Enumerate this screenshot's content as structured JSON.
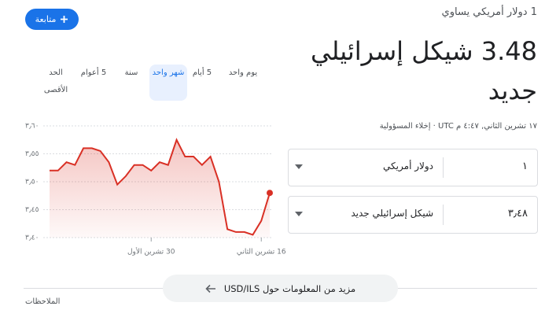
{
  "header": {
    "follow": "متابعة",
    "equals": "1 دولار أمريكي يساوي",
    "result": "3.48 شيكل إسرائيلي جديد",
    "timestamp": "١٧ تشرين الثاني, ٤:٤٧ م UTC",
    "disclaimer": "إخلاء المسؤولية"
  },
  "tabs": [
    "يوم واحد",
    "5 أيام",
    "شهر واحد",
    "سنة",
    "5 أعوام",
    "الحد الأقصى"
  ],
  "selected_tab": 2,
  "converter": {
    "from_amount": "١",
    "from_currency": "دولار أمريكي",
    "to_amount": "٣٫٤٨",
    "to_currency": "شيكل إسرائيلي جديد"
  },
  "chart_data": {
    "type": "line",
    "categories": [
      null,
      null,
      null,
      null,
      null,
      null,
      null,
      null,
      null,
      null,
      null,
      null,
      "30 تشرين الأول",
      null,
      null,
      null,
      null,
      null,
      null,
      null,
      null,
      null,
      null,
      null,
      null,
      "16 تشرين الثاني",
      null
    ],
    "values": [
      3.52,
      3.52,
      3.535,
      3.53,
      3.56,
      3.56,
      3.555,
      3.535,
      3.495,
      3.51,
      3.53,
      3.53,
      3.52,
      3.535,
      3.53,
      3.575,
      3.545,
      3.545,
      3.53,
      3.545,
      3.5,
      3.415,
      3.41,
      3.41,
      3.405,
      3.43,
      3.48
    ],
    "color": "#d93025",
    "ylim": [
      3.4,
      3.6
    ],
    "yticks": [
      {
        "value": 3.4,
        "label": "٣٫٤٠"
      },
      {
        "value": 3.45,
        "label": "٣٫٤٥"
      },
      {
        "value": 3.5,
        "label": "٣٫٥٠"
      },
      {
        "value": 3.55,
        "label": "٣٫٥٥"
      },
      {
        "value": 3.6,
        "label": "٣٫٦٠"
      }
    ],
    "grid": true
  },
  "more_button": "مزيد من المعلومات حول USD/ILS",
  "notes": "الملاحظات"
}
